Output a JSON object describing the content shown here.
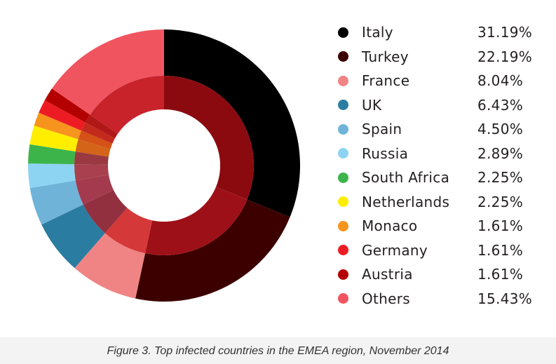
{
  "chart_data": {
    "type": "pie",
    "title": "",
    "categories": [
      "Italy",
      "Turkey",
      "France",
      "UK",
      "Spain",
      "Russia",
      "South Africa",
      "Netherlands",
      "Monaco",
      "Germany",
      "Austria",
      "Others"
    ],
    "values": [
      31.19,
      22.19,
      8.04,
      6.43,
      4.5,
      2.89,
      2.25,
      2.25,
      1.61,
      1.61,
      1.61,
      15.43
    ],
    "value_labels": [
      "31.19%",
      "22.19%",
      "8.04%",
      "6.43%",
      "4.50%",
      "2.89%",
      "2.25%",
      "2.25%",
      "1.61%",
      "1.61%",
      "1.61%",
      "15.43%"
    ],
    "colors": [
      "#000000",
      "#3d0000",
      "#f08484",
      "#2a7da0",
      "#6fb4d8",
      "#8dd4f2",
      "#3db44a",
      "#ffee00",
      "#f7941d",
      "#ed1c24",
      "#b50000",
      "#f0555f"
    ],
    "inner_ring_colors": [
      "#8b0a10",
      "#9e1018",
      "#d43838",
      "#933040",
      "#a43a4e",
      "#a84050",
      "#9a3a40",
      "#d46418",
      "#d45216",
      "#c42a1c",
      "#b01818",
      "#c8232a"
    ],
    "legend_placement": "right",
    "style": "double-ring donut"
  },
  "caption": "Figure 3. Top infected countries in the EMEA region, November 2014"
}
